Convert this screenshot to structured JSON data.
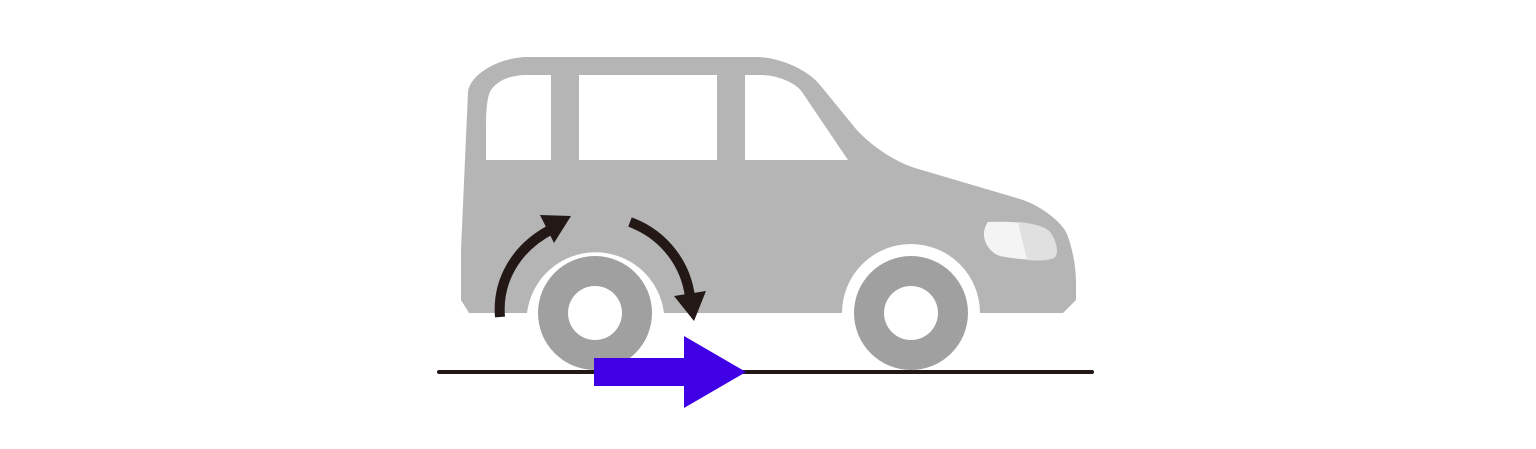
{
  "diagram": {
    "subject": "car-side-view",
    "colors": {
      "background": "#ffffff",
      "car_body": "#b5b5b5",
      "window": "#ffffff",
      "tire": "#a0a0a0",
      "hub": "#ffffff",
      "headlight": "#e0e0e0",
      "rotation_arrow": "#231815",
      "ground_line": "#231815",
      "force_arrow": "#4000e6"
    },
    "elements": {
      "rotation_arrows": [
        "counter-rotation-left",
        "rotation-right"
      ],
      "motion_arrow": "forward-direction-right"
    }
  }
}
